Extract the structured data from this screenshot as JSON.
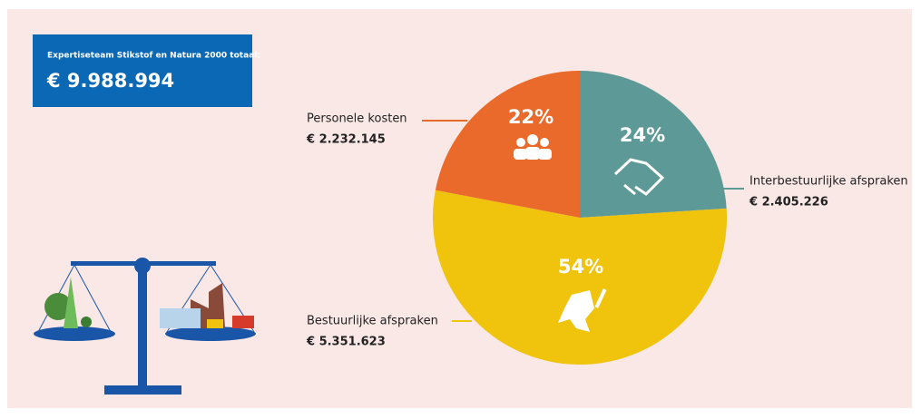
{
  "chart_data": {
    "type": "pie",
    "header": "Expertiseteam Stikstof en Natura 2000 totaal:",
    "total": "€ 9.988.994",
    "categories": [
      "Interbestuurlijke afspraken",
      "Bestuurlijke afspraken",
      "Personele kosten"
    ],
    "values": [
      24,
      54,
      22
    ],
    "value_labels": [
      "24%",
      "54%",
      "22%"
    ],
    "amounts": [
      "€ 2.405.226",
      "€ 5.351.623",
      "€ 2.232.145"
    ],
    "colors": [
      "#5d9a97",
      "#f0c30c",
      "#ea6a2c"
    ]
  }
}
